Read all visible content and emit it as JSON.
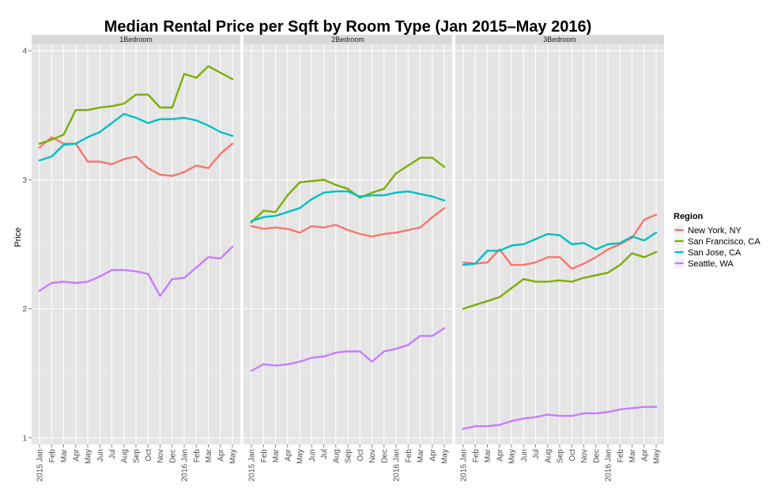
{
  "chart_data": {
    "type": "line",
    "title": "Median Rental Price per Sqft by Room Type (Jan 2015–May 2016)",
    "ylabel": "Price",
    "xlabel": "",
    "ylim": [
      0.95,
      4.05
    ],
    "yticks": [
      1,
      2,
      3,
      4
    ],
    "grid": true,
    "legend_title": "Region",
    "legend_position": "right",
    "x": [
      "2015 Jan",
      "Feb",
      "Mar",
      "Apr",
      "May",
      "Jun",
      "Jul",
      "Aug",
      "Sep",
      "Oct",
      "Nov",
      "Dec",
      "2016 Jan",
      "Feb",
      "Mar",
      "Apr",
      "May"
    ],
    "series_meta": [
      {
        "name": "New York, NY",
        "color": "#F8766D"
      },
      {
        "name": "San Francisco, CA",
        "color": "#7CAE00"
      },
      {
        "name": "San Jose, CA",
        "color": "#00BFC4"
      },
      {
        "name": "Seattle, WA",
        "color": "#C77CFF"
      }
    ],
    "panels": [
      {
        "label": "1Bedroom",
        "series": [
          {
            "name": "New York, NY",
            "values": [
              3.25,
              3.33,
              3.28,
              3.28,
              3.14,
              3.14,
              3.12,
              3.16,
              3.18,
              3.09,
              3.04,
              3.03,
              3.06,
              3.11,
              3.09,
              3.2,
              3.28
            ]
          },
          {
            "name": "San Francisco, CA",
            "values": [
              3.28,
              3.31,
              3.35,
              3.54,
              3.54,
              3.56,
              3.57,
              3.59,
              3.66,
              3.66,
              3.56,
              3.56,
              3.82,
              3.79,
              3.88,
              3.83,
              3.78
            ]
          },
          {
            "name": "San Jose, CA",
            "values": [
              3.15,
              3.18,
              3.27,
              3.28,
              3.33,
              3.37,
              3.44,
              3.51,
              3.48,
              3.44,
              3.47,
              3.47,
              3.48,
              3.46,
              3.42,
              3.37,
              3.34
            ]
          },
          {
            "name": "Seattle, WA",
            "values": [
              2.14,
              2.2,
              2.21,
              2.2,
              2.21,
              2.25,
              2.3,
              2.3,
              2.29,
              2.27,
              2.1,
              2.23,
              2.24,
              2.32,
              2.4,
              2.39,
              2.48
            ]
          }
        ]
      },
      {
        "label": "2Bedroom",
        "series": [
          {
            "name": "New York, NY",
            "values": [
              2.64,
              2.62,
              2.63,
              2.62,
              2.59,
              2.64,
              2.63,
              2.65,
              2.61,
              2.58,
              2.56,
              2.58,
              2.59,
              2.61,
              2.63,
              2.71,
              2.78
            ]
          },
          {
            "name": "San Francisco, CA",
            "values": [
              2.67,
              2.76,
              2.75,
              2.88,
              2.98,
              2.99,
              3.0,
              2.96,
              2.93,
              2.86,
              2.9,
              2.93,
              3.05,
              3.11,
              3.17,
              3.17,
              3.1
            ]
          },
          {
            "name": "San Jose, CA",
            "values": [
              2.68,
              2.71,
              2.72,
              2.75,
              2.78,
              2.85,
              2.9,
              2.91,
              2.91,
              2.87,
              2.88,
              2.88,
              2.9,
              2.91,
              2.89,
              2.87,
              2.84
            ]
          },
          {
            "name": "Seattle, WA",
            "values": [
              1.52,
              1.57,
              1.56,
              1.57,
              1.59,
              1.62,
              1.63,
              1.66,
              1.67,
              1.67,
              1.59,
              1.67,
              1.69,
              1.72,
              1.79,
              1.79,
              1.85
            ]
          }
        ]
      },
      {
        "label": "3Bedroom",
        "series": [
          {
            "name": "New York, NY",
            "values": [
              2.36,
              2.35,
              2.36,
              2.46,
              2.34,
              2.34,
              2.36,
              2.4,
              2.4,
              2.31,
              2.35,
              2.4,
              2.46,
              2.5,
              2.55,
              2.69,
              2.73
            ]
          },
          {
            "name": "San Francisco, CA",
            "values": [
              2.0,
              2.03,
              2.06,
              2.09,
              2.16,
              2.23,
              2.21,
              2.21,
              2.22,
              2.21,
              2.24,
              2.26,
              2.28,
              2.34,
              2.43,
              2.4,
              2.44
            ]
          },
          {
            "name": "San Jose, CA",
            "values": [
              2.34,
              2.35,
              2.45,
              2.45,
              2.49,
              2.5,
              2.54,
              2.58,
              2.57,
              2.5,
              2.51,
              2.46,
              2.5,
              2.51,
              2.56,
              2.53,
              2.59
            ]
          },
          {
            "name": "Seattle, WA",
            "values": [
              1.07,
              1.09,
              1.09,
              1.1,
              1.13,
              1.15,
              1.16,
              1.18,
              1.17,
              1.17,
              1.19,
              1.19,
              1.2,
              1.22,
              1.23,
              1.24,
              1.24
            ]
          }
        ]
      }
    ]
  }
}
